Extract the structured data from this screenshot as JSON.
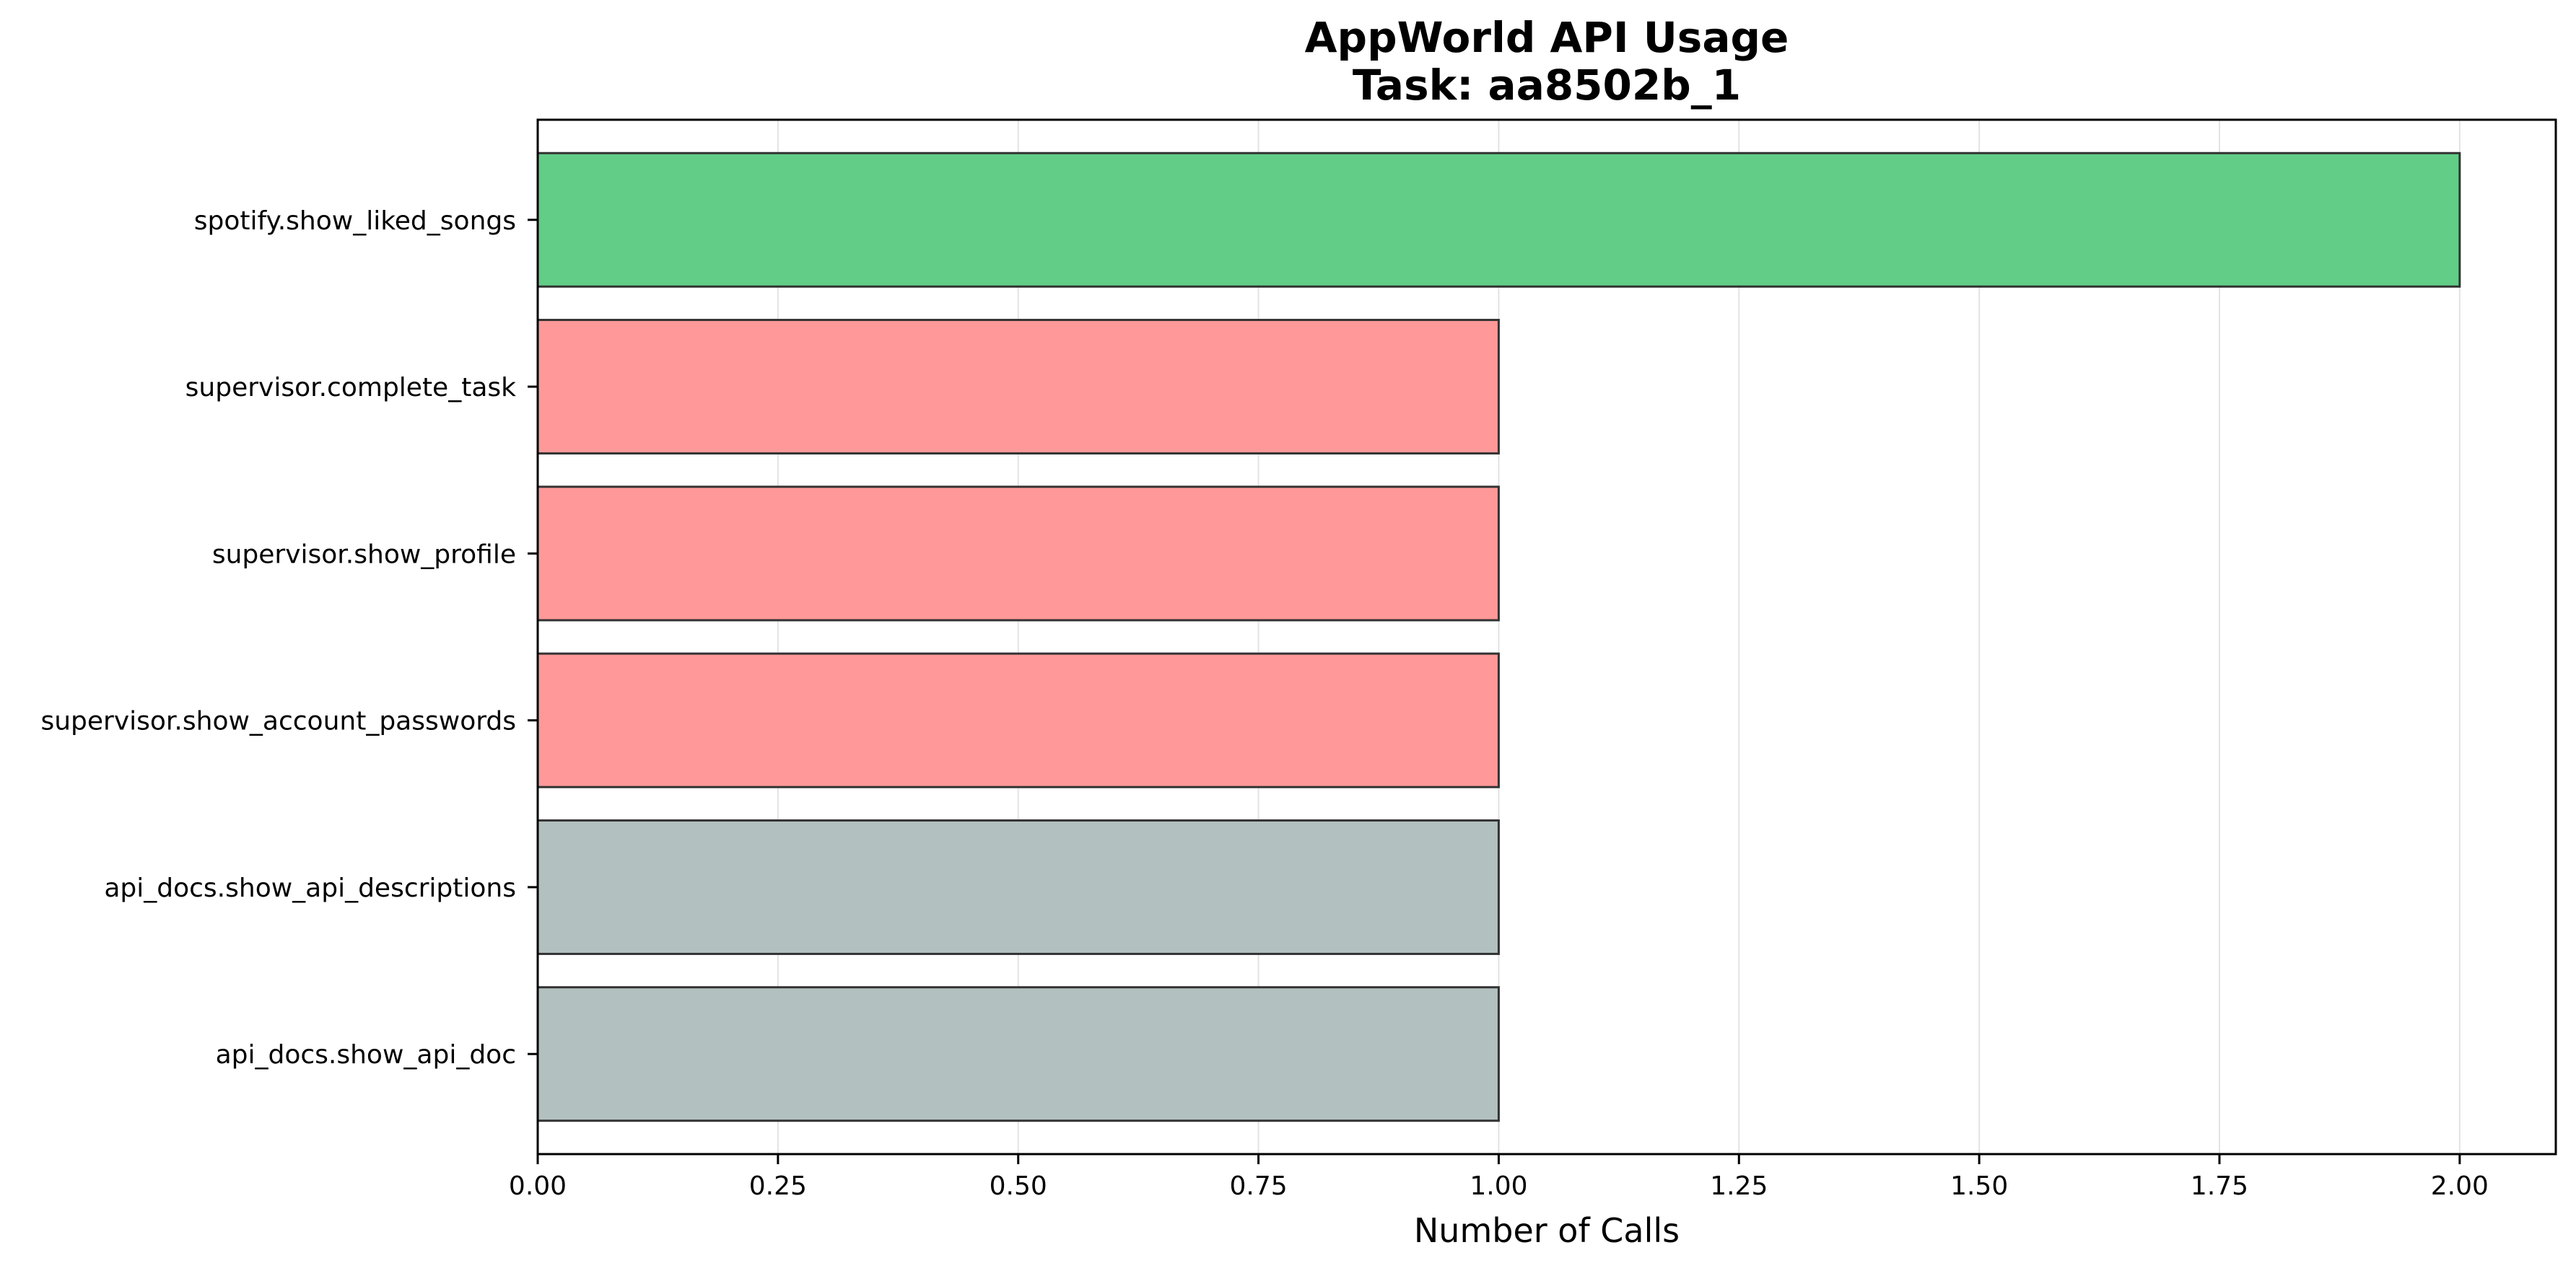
{
  "chart_data": {
    "type": "bar",
    "orientation": "horizontal",
    "title": "AppWorld API Usage",
    "subtitle": "Task: aa8502b_1",
    "xlabel": "Number of Calls",
    "ylabel": "",
    "categories": [
      "spotify.show_liked_songs",
      "supervisor.complete_task",
      "supervisor.show_profile",
      "supervisor.show_account_passwords",
      "api_docs.show_api_descriptions",
      "api_docs.show_api_doc"
    ],
    "values": [
      2,
      1,
      1,
      1,
      1,
      1
    ],
    "bar_colors": [
      "#61cd86",
      "#ff9999",
      "#ff9999",
      "#ff9999",
      "#b3c0c0",
      "#b3c0c0"
    ],
    "edge_color": "#333333",
    "xlim": [
      0,
      2.1
    ],
    "xticks": [
      0.0,
      0.25,
      0.5,
      0.75,
      1.0,
      1.25,
      1.5,
      1.75,
      2.0
    ],
    "xtick_labels": [
      "0.00",
      "0.25",
      "0.50",
      "0.75",
      "1.00",
      "1.25",
      "1.50",
      "1.75",
      "2.00"
    ],
    "grid": "x",
    "grid_color": "#e3e3e3",
    "legend": "none"
  }
}
